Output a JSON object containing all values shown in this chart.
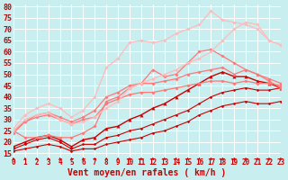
{
  "bg_color": "#c8eef0",
  "grid_color": "#ffffff",
  "xlabel": "Vent moyen/en rafales ( km/h )",
  "xlim": [
    0,
    23
  ],
  "ylim": [
    13,
    81
  ],
  "yticks": [
    15,
    20,
    25,
    30,
    35,
    40,
    45,
    50,
    55,
    60,
    65,
    70,
    75,
    80
  ],
  "xticks": [
    0,
    1,
    2,
    3,
    4,
    5,
    6,
    7,
    8,
    9,
    10,
    11,
    12,
    13,
    14,
    15,
    16,
    17,
    18,
    19,
    20,
    21,
    22,
    23
  ],
  "series": [
    {
      "x": [
        0,
        1,
        2,
        3,
        4,
        5,
        6,
        7,
        8,
        9,
        10,
        11,
        12,
        13,
        14,
        15,
        16,
        17,
        18,
        19,
        20,
        21,
        22,
        23
      ],
      "y": [
        16,
        17,
        18,
        19,
        18,
        16,
        17,
        17,
        19,
        20,
        21,
        22,
        24,
        25,
        27,
        29,
        32,
        34,
        36,
        37,
        38,
        37,
        37,
        38
      ],
      "color": "#cc0000",
      "lw": 0.8,
      "marker": "D",
      "ms": 1.5
    },
    {
      "x": [
        0,
        1,
        2,
        3,
        4,
        5,
        6,
        7,
        8,
        9,
        10,
        11,
        12,
        13,
        14,
        15,
        16,
        17,
        18,
        19,
        20,
        21,
        22,
        23
      ],
      "y": [
        17,
        19,
        21,
        22,
        20,
        17,
        19,
        19,
        22,
        23,
        25,
        26,
        28,
        30,
        32,
        34,
        37,
        40,
        42,
        43,
        44,
        43,
        43,
        44
      ],
      "color": "#cc0000",
      "lw": 0.8,
      "marker": "D",
      "ms": 1.5
    },
    {
      "x": [
        0,
        1,
        2,
        3,
        4,
        5,
        6,
        7,
        8,
        9,
        10,
        11,
        12,
        13,
        14,
        15,
        16,
        17,
        18,
        19,
        20,
        21,
        22,
        23
      ],
      "y": [
        18,
        20,
        22,
        23,
        21,
        18,
        21,
        22,
        26,
        27,
        30,
        32,
        35,
        37,
        40,
        43,
        46,
        49,
        51,
        49,
        49,
        47,
        46,
        44
      ],
      "color": "#cc0000",
      "lw": 1.0,
      "marker": "^",
      "ms": 2.5
    },
    {
      "x": [
        0,
        1,
        2,
        3,
        4,
        5,
        6,
        7,
        8,
        9,
        10,
        11,
        12,
        13,
        14,
        15,
        16,
        17,
        18,
        19,
        20,
        21,
        22,
        23
      ],
      "y": [
        24,
        29,
        31,
        32,
        30,
        28,
        30,
        31,
        37,
        39,
        41,
        42,
        42,
        43,
        44,
        45,
        46,
        47,
        47,
        46,
        47,
        46,
        46,
        45
      ],
      "color": "#ff7777",
      "lw": 0.9,
      "marker": "D",
      "ms": 1.8
    },
    {
      "x": [
        0,
        1,
        2,
        3,
        4,
        5,
        6,
        7,
        8,
        9,
        10,
        11,
        12,
        13,
        14,
        15,
        16,
        17,
        18,
        19,
        20,
        21,
        22,
        23
      ],
      "y": [
        25,
        22,
        22,
        23,
        22,
        22,
        24,
        27,
        38,
        40,
        44,
        46,
        52,
        49,
        50,
        55,
        60,
        61,
        58,
        55,
        52,
        50,
        47,
        44
      ],
      "color": "#ff7777",
      "lw": 0.9,
      "marker": "D",
      "ms": 1.8
    },
    {
      "x": [
        0,
        1,
        2,
        3,
        4,
        5,
        6,
        7,
        8,
        9,
        10,
        11,
        12,
        13,
        14,
        15,
        16,
        17,
        18,
        19,
        20,
        21,
        22,
        23
      ],
      "y": [
        25,
        29,
        32,
        33,
        31,
        29,
        31,
        34,
        40,
        42,
        45,
        46,
        46,
        47,
        48,
        50,
        51,
        52,
        53,
        50,
        52,
        50,
        48,
        46
      ],
      "color": "#ff7777",
      "lw": 0.9,
      "marker": "D",
      "ms": 1.8
    },
    {
      "x": [
        0,
        1,
        2,
        3,
        4,
        5,
        6,
        7,
        8,
        9,
        10,
        11,
        12,
        13,
        14,
        15,
        16,
        17,
        18,
        19,
        20,
        21,
        22,
        23
      ],
      "y": [
        26,
        32,
        35,
        37,
        35,
        31,
        34,
        40,
        53,
        57,
        64,
        65,
        64,
        65,
        68,
        70,
        72,
        78,
        74,
        73,
        72,
        70,
        65,
        63
      ],
      "color": "#ffbbbb",
      "lw": 0.9,
      "marker": "D",
      "ms": 1.8
    },
    {
      "x": [
        0,
        1,
        2,
        3,
        4,
        5,
        6,
        7,
        8,
        9,
        10,
        11,
        12,
        13,
        14,
        15,
        16,
        17,
        18,
        19,
        20,
        21,
        22,
        23
      ],
      "y": [
        25,
        30,
        32,
        33,
        30,
        28,
        29,
        31,
        35,
        38,
        44,
        46,
        48,
        50,
        52,
        55,
        57,
        60,
        65,
        70,
        73,
        72,
        65,
        63
      ],
      "color": "#ffbbbb",
      "lw": 0.9,
      "marker": "D",
      "ms": 1.8
    }
  ],
  "arrow_color": "#cc0000",
  "tick_label_color": "#cc0000",
  "xlabel_color": "#cc0000",
  "xlabel_fontsize": 7,
  "ytick_fontsize": 6,
  "xtick_fontsize": 5.5
}
